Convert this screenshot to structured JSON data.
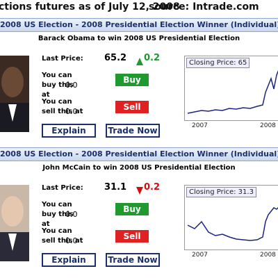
{
  "header": {
    "title": "ctions futures as of July 12, 2008",
    "source": "source: Intrade.com"
  },
  "panels": [
    {
      "heading": "2008 US Election - 2008 Presidential Election Winner (Individual)",
      "contract": "Barack Obama to win 2008 US Presidential Election",
      "last_price_label": "Last Price:",
      "last_price": 65.2,
      "change": "0.2",
      "direction": "up",
      "buy_label": "You can buy this at",
      "buy_price": "0.0",
      "buy": "Buy",
      "sell_label": "You can sell this at",
      "sell_price": "0.0",
      "sell": "Sell",
      "explain": "Explain",
      "trade": "Trade Now",
      "chart_label": "Closing Price: 65",
      "chart_years": [
        "2007",
        "2008"
      ]
    },
    {
      "heading": "2008 US Election - 2008 Presidential Election Winner (Individual)",
      "contract": "John McCain to win 2008 US Presidential Election",
      "last_price_label": "Last Price:",
      "last_price": 31.1,
      "change": "0.2",
      "direction": "down",
      "buy_label": "You can buy this at",
      "buy_price": "0.0",
      "buy": "Buy",
      "sell_label": "You can sell this at",
      "sell_price": "0.0",
      "sell": "Sell",
      "explain": "Explain",
      "trade": "Trade Now",
      "chart_label": "Closing Price: 31.3",
      "chart_years": [
        "2007",
        "2008"
      ]
    }
  ]
}
